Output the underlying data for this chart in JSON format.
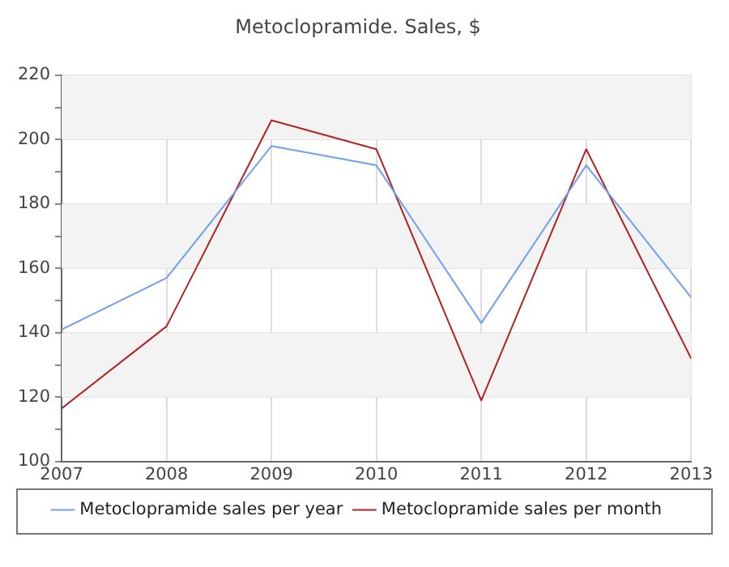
{
  "chart_data": {
    "type": "line",
    "title": "Metoclopramide. Sales, $",
    "x": [
      2007,
      2008,
      2009,
      2010,
      2011,
      2012,
      2013
    ],
    "series": [
      {
        "name": "Metoclopramide sales per year",
        "color": "#6f9ff0",
        "values": [
          141,
          157,
          198,
          192,
          143,
          192,
          151
        ]
      },
      {
        "name": "Metoclopramide sales per month",
        "color": "#b22222",
        "values": [
          116.5,
          142,
          206,
          197,
          119,
          197,
          132
        ]
      }
    ],
    "xlim": [
      2007,
      2013
    ],
    "xticks": [
      2007,
      2008,
      2009,
      2010,
      2011,
      2012,
      2013
    ],
    "ylim": [
      100,
      220
    ],
    "yticks": [
      100,
      {
        "value": 110,
        "label": null
      },
      120,
      {
        "value": 130,
        "label": null
      },
      140,
      {
        "value": 150,
        "label": null
      },
      160,
      {
        "value": 170,
        "label": null
      },
      180,
      {
        "value": 190,
        "label": null
      },
      200,
      {
        "value": 210,
        "label": null
      },
      220
    ],
    "grid": true,
    "legend": "bottom",
    "marker": "none",
    "line_style": "solid"
  }
}
